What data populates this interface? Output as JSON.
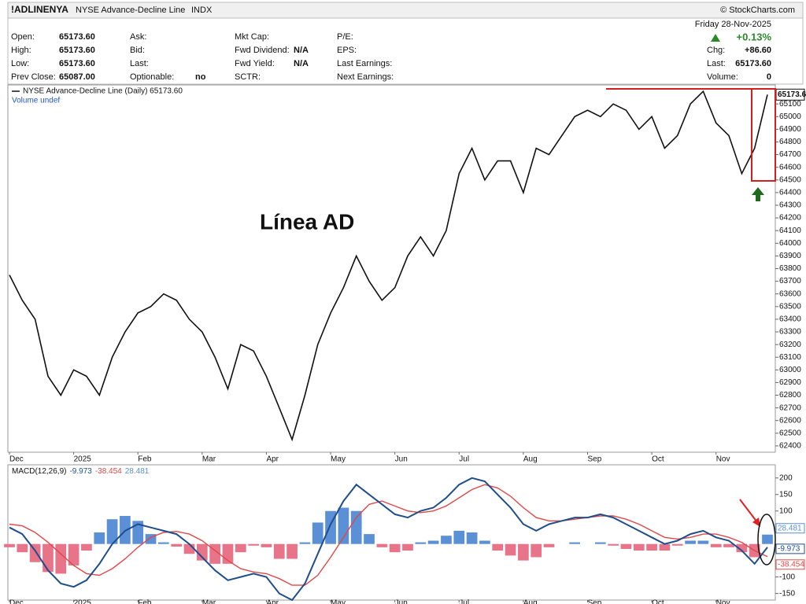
{
  "header": {
    "symbol": "!ADLINENYA",
    "name": "NYSE Advance-Decline Line",
    "exchange": "INDX",
    "source": "© StockCharts.com",
    "date": "Friday  28-Nov-2025",
    "change_pct": "+0.13%",
    "columns": [
      [
        {
          "label": "Open:",
          "value": "65173.60"
        },
        {
          "label": "High:",
          "value": "65173.60"
        },
        {
          "label": "Low:",
          "value": "65173.60"
        },
        {
          "label": "Prev Close:",
          "value": "65087.00"
        }
      ],
      [
        {
          "label": "Ask:"
        },
        {
          "label": "Bid:"
        },
        {
          "label": "Last:"
        },
        {
          "label": "Optionable:",
          "value": "no"
        }
      ],
      [
        {
          "label": "Mkt Cap:"
        },
        {
          "label": "Fwd Dividend:",
          "value": "N/A"
        },
        {
          "label": "Fwd Yield:",
          "value": "N/A"
        },
        {
          "label": "SCTR:"
        }
      ],
      [
        {
          "label": "P/E:"
        },
        {
          "label": "EPS:"
        },
        {
          "label": "Last Earnings:"
        },
        {
          "label": "Next Earnings:"
        }
      ],
      [
        {
          "label": "Chg:",
          "value": "+86.60"
        },
        {
          "label": "Last:",
          "value": "65173.60"
        },
        {
          "label": "Volume:",
          "value": "0"
        }
      ]
    ]
  },
  "chart_data": [
    {
      "type": "line",
      "annotation": "Línea AD",
      "legend_note": "Volume undef",
      "last_label": "65173.60",
      "categories": [
        "Dec",
        null,
        null,
        null,
        null,
        "2025",
        null,
        null,
        null,
        null,
        "Feb",
        null,
        null,
        null,
        null,
        "Mar",
        null,
        null,
        null,
        null,
        "Apr",
        null,
        null,
        null,
        null,
        "May",
        null,
        null,
        null,
        null,
        "Jun",
        null,
        null,
        null,
        null,
        "Jul",
        null,
        null,
        null,
        null,
        "Aug",
        null,
        null,
        null,
        null,
        "Sep",
        null,
        null,
        null,
        null,
        "Oct",
        null,
        null,
        null,
        null,
        "Nov",
        null,
        null,
        null,
        null
      ],
      "series": [
        {
          "name": "NYSE Advance-Decline Line (Daily) 65173.60",
          "color": "#111111",
          "values": [
            63750,
            63550,
            63400,
            62950,
            62800,
            63000,
            62950,
            62800,
            63100,
            63300,
            63450,
            63500,
            63600,
            63550,
            63400,
            63300,
            63100,
            62850,
            63200,
            63150,
            62950,
            62700,
            62450,
            62800,
            63200,
            63450,
            63650,
            63900,
            63700,
            63550,
            63650,
            63900,
            64050,
            63900,
            64100,
            64550,
            64750,
            64500,
            64650,
            64650,
            64400,
            64750,
            64700,
            64850,
            65000,
            65050,
            65000,
            65100,
            65050,
            64900,
            65000,
            64750,
            64850,
            65100,
            65200,
            64950,
            64850,
            64550,
            64750,
            65173.6
          ]
        }
      ],
      "ylim": [
        62350,
        65250
      ],
      "yticks": [
        62400,
        62500,
        62600,
        62700,
        62800,
        62900,
        63000,
        63100,
        63200,
        63300,
        63400,
        63500,
        63600,
        63700,
        63800,
        63900,
        64000,
        64100,
        64200,
        64300,
        64400,
        64500,
        64600,
        64700,
        64800,
        64900,
        65000,
        65100
      ]
    },
    {
      "type": "macd",
      "title": "MACD(12,26,9)",
      "series": [
        {
          "color": "#1f4e8c",
          "label": "-9.973",
          "values": [
            50,
            30,
            -20,
            -80,
            -120,
            -130,
            -110,
            -60,
            0,
            40,
            60,
            50,
            40,
            30,
            0,
            -40,
            -80,
            -110,
            -100,
            -90,
            -100,
            -150,
            -170,
            -120,
            -30,
            60,
            130,
            180,
            150,
            120,
            90,
            80,
            100,
            110,
            140,
            180,
            200,
            190,
            150,
            110,
            60,
            40,
            60,
            70,
            80,
            80,
            90,
            80,
            60,
            40,
            20,
            0,
            10,
            30,
            40,
            20,
            10,
            -20,
            -60,
            -9.973
          ]
        },
        {
          "color": "#e04848",
          "label": "-38.454",
          "values": [
            60,
            55,
            35,
            5,
            -30,
            -65,
            -90,
            -95,
            -75,
            -45,
            -10,
            20,
            35,
            38,
            30,
            10,
            -20,
            -50,
            -75,
            -85,
            -90,
            -105,
            -125,
            -125,
            -95,
            -40,
            20,
            80,
            120,
            130,
            115,
            100,
            95,
            100,
            115,
            140,
            165,
            180,
            170,
            145,
            110,
            80,
            70,
            70,
            75,
            80,
            85,
            85,
            75,
            60,
            40,
            20,
            15,
            20,
            30,
            30,
            20,
            5,
            -20,
            -38.454
          ]
        },
        {
          "color": "#5b8fd6",
          "negative_color": "#e8748a",
          "label": "28.481",
          "values": [
            -10,
            -25,
            -55,
            -85,
            -90,
            -65,
            -20,
            35,
            75,
            85,
            70,
            30,
            5,
            -8,
            -30,
            -50,
            -60,
            -60,
            -25,
            -5,
            -10,
            -45,
            -45,
            5,
            65,
            100,
            110,
            100,
            30,
            -10,
            -25,
            -20,
            5,
            10,
            25,
            40,
            35,
            10,
            -20,
            -35,
            -50,
            -40,
            -10,
            0,
            5,
            0,
            5,
            -5,
            -15,
            -20,
            -20,
            -20,
            -5,
            10,
            10,
            -10,
            -10,
            -25,
            -40,
            28.481
          ]
        }
      ],
      "ylim": [
        -170,
        240
      ],
      "yticks": [
        -150,
        -100,
        100,
        150,
        200
      ]
    }
  ]
}
